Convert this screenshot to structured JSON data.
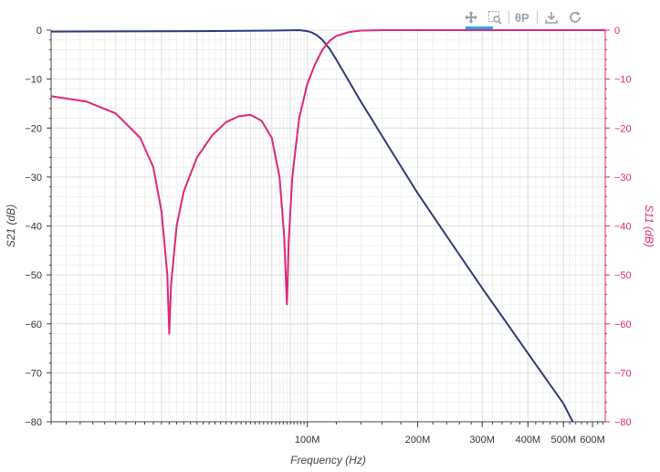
{
  "toolbar": {
    "tools": [
      {
        "name": "pan-tool",
        "icon": "move-icon"
      },
      {
        "name": "box-zoom-tool",
        "icon": "box-zoom-icon"
      },
      {
        "name": "hover-tool",
        "icon": "hover-icon"
      },
      {
        "name": "save-tool",
        "icon": "download-icon"
      },
      {
        "name": "reset-tool",
        "icon": "reset-icon"
      }
    ],
    "active_color": "#26aae1"
  },
  "chart_data": {
    "type": "line",
    "xlabel": "Frequency (Hz)",
    "ylabel_left": "S21 (dB)",
    "ylabel_right": "S11 (dB)",
    "xscale": "log",
    "xlim": [
      20000000,
      650000000
    ],
    "ylim": [
      -80,
      0
    ],
    "x_ticks": [
      {
        "value": 100000000,
        "label": "100M"
      },
      {
        "value": 200000000,
        "label": "200M"
      },
      {
        "value": 300000000,
        "label": "300M"
      },
      {
        "value": 400000000,
        "label": "400M"
      },
      {
        "value": 500000000,
        "label": "500M"
      },
      {
        "value": 600000000,
        "label": "600M"
      }
    ],
    "y_ticks": [
      0,
      -10,
      -20,
      -30,
      -40,
      -50,
      -60,
      -70,
      -80
    ],
    "grid": true,
    "colors": {
      "s21": "#2f3a7a",
      "s11": "#e0267a",
      "axis_right": "#e0267a"
    },
    "series": [
      {
        "name": "S21",
        "axis": "left",
        "x": [
          20000000,
          50000000,
          80000000,
          95000000,
          100000000,
          103000000,
          106000000,
          110000000,
          115000000,
          120000000,
          130000000,
          140000000,
          150000000,
          170000000,
          200000000,
          250000000,
          300000000,
          400000000,
          500000000,
          530000000
        ],
        "y": [
          -0.3,
          -0.2,
          -0.1,
          0.0,
          -0.2,
          -0.5,
          -1.0,
          -2.0,
          -3.8,
          -6.0,
          -10.5,
          -14.6,
          -18.2,
          -24.8,
          -33.3,
          -44.0,
          -52.7,
          -66.0,
          -76.3,
          -80.0
        ]
      },
      {
        "name": "S11",
        "axis": "right",
        "x": [
          20000000,
          25000000,
          30000000,
          35000000,
          38000000,
          40000000,
          41500000,
          42000000,
          42500000,
          44000000,
          46000000,
          50000000,
          55000000,
          60000000,
          65000000,
          70000000,
          75000000,
          80000000,
          84000000,
          86500000,
          88000000,
          88500000,
          89000000,
          91000000,
          95000000,
          100000000,
          105000000,
          110000000,
          115000000,
          120000000,
          130000000,
          140000000,
          160000000,
          200000000,
          650000000
        ],
        "y": [
          -13.5,
          -14.6,
          -17.0,
          -22.0,
          -28.0,
          -37.0,
          -50.0,
          -62.0,
          -52.0,
          -40.0,
          -33.0,
          -26.0,
          -21.5,
          -18.8,
          -17.6,
          -17.3,
          -18.5,
          -22.0,
          -30.0,
          -42.0,
          -56.0,
          -50.0,
          -43.0,
          -30.0,
          -18.0,
          -11.0,
          -7.0,
          -4.0,
          -2.2,
          -1.2,
          -0.4,
          -0.1,
          0.0,
          0.0,
          0.0
        ]
      }
    ]
  }
}
